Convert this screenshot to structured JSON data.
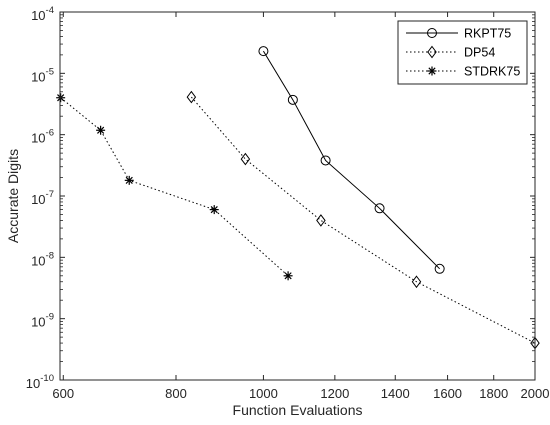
{
  "chart_data": {
    "type": "line",
    "xlabel": "Function Evaluations",
    "ylabel": "Accurate Digits",
    "x_scale": "log",
    "y_scale": "log",
    "xlim": [
      595,
      2000
    ],
    "ylim": [
      1e-10,
      0.0001
    ],
    "x_ticks": [
      600,
      800,
      1000,
      1200,
      1400,
      1600,
      1800,
      2000
    ],
    "x_tick_labels": [
      "600",
      "800",
      "1000",
      "1200",
      "1400",
      "1600",
      "1800",
      "2000"
    ],
    "y_ticks": [
      1e-10,
      1e-09,
      1e-08,
      1e-07,
      1e-06,
      1e-05,
      0.0001
    ],
    "y_tick_labels": [
      {
        "base": "10",
        "exp": "-10"
      },
      {
        "base": "10",
        "exp": "-9"
      },
      {
        "base": "10",
        "exp": "-8"
      },
      {
        "base": "10",
        "exp": "-7"
      },
      {
        "base": "10",
        "exp": "-6"
      },
      {
        "base": "10",
        "exp": "-5"
      },
      {
        "base": "10",
        "exp": "-4"
      }
    ],
    "grid": false,
    "legend_position": "top-right",
    "series": [
      {
        "name": "RKPT75",
        "line": "solid",
        "marker": "circle",
        "color": "#000000",
        "x": [
          1000,
          1078,
          1172,
          1345,
          1568
        ],
        "y": [
          2.3e-05,
          3.7e-06,
          3.8e-07,
          6.3e-08,
          6.5e-09
        ]
      },
      {
        "name": "DP54",
        "line": "dotted",
        "marker": "diamond",
        "color": "#000000",
        "x": [
          832,
          955,
          1158,
          1478,
          2000
        ],
        "y": [
          4.1e-06,
          4e-07,
          4e-08,
          4e-09,
          4e-10
        ]
      },
      {
        "name": "STDRK75",
        "line": "dotted",
        "marker": "asterisk",
        "color": "#000000",
        "x": [
          596,
          660,
          710,
          882,
          1065
        ],
        "y": [
          4e-06,
          1.18e-06,
          1.8e-07,
          6e-08,
          5e-09
        ]
      }
    ]
  }
}
